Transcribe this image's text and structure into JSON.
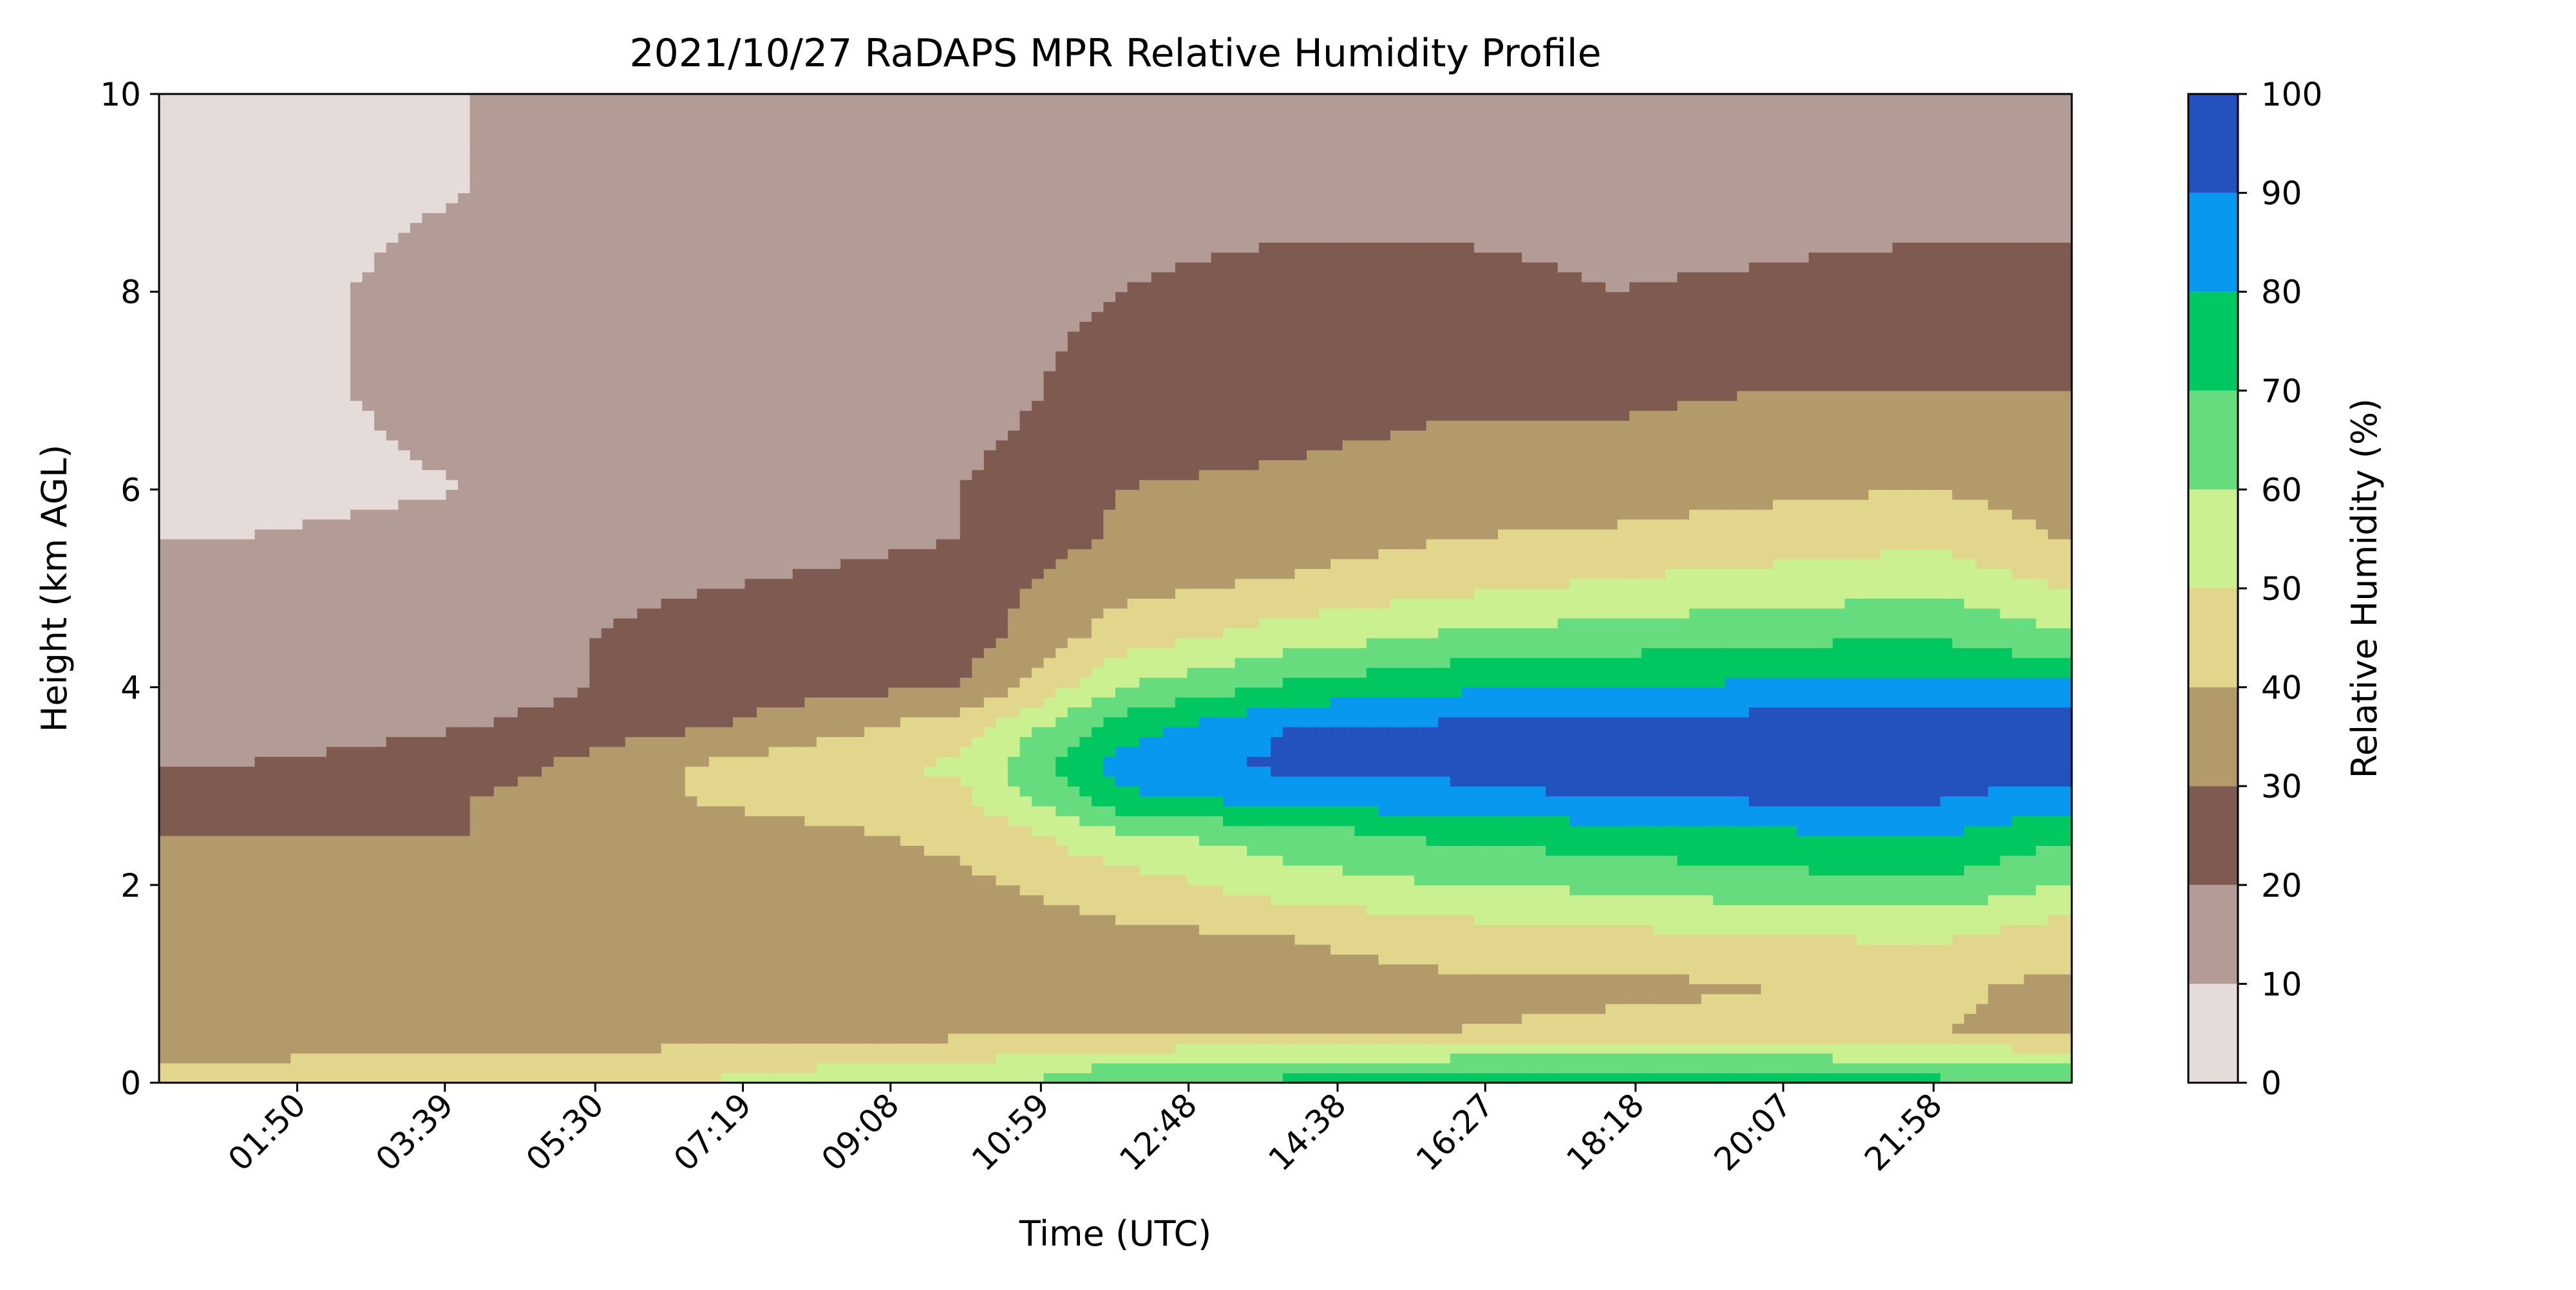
{
  "chart_data": {
    "type": "heatmap",
    "subtype": "filled-contour",
    "title": "2021/10/27 RaDAPS MPR Relative Humidity Profile",
    "xlabel": "Time (UTC)",
    "ylabel": "Height (km AGL)",
    "x_tick_labels": [
      "01:50",
      "03:39",
      "05:30",
      "07:19",
      "09:08",
      "10:59",
      "12:48",
      "14:38",
      "16:27",
      "18:18",
      "20:07",
      "21:58"
    ],
    "x_tick_minutes": [
      110,
      219,
      330,
      439,
      548,
      659,
      768,
      878,
      987,
      1098,
      1207,
      1318
    ],
    "xlim_minutes": [
      8,
      1420
    ],
    "ylim": [
      0,
      10
    ],
    "y_ticks": [
      0,
      2,
      4,
      6,
      8,
      10
    ],
    "colorbar": {
      "label": "Relative Humidity (%)",
      "levels": [
        0,
        10,
        20,
        30,
        40,
        50,
        60,
        70,
        80,
        90,
        100
      ],
      "colors": [
        "#e5dcd9",
        "#b39b96",
        "#7e5a50",
        "#b39a6a",
        "#e2d68c",
        "#cbf08f",
        "#66dc7e",
        "#00c75f",
        "#0998f0",
        "#2351bd"
      ]
    },
    "profile_bands_approx": {
      "height_km": [
        0.1,
        0.5,
        1.0,
        1.5,
        2.0,
        2.5,
        2.9,
        3.2,
        3.6,
        4.0,
        4.5,
        5.0,
        5.5,
        6.0,
        7.0,
        8.0,
        9.0
      ],
      "time_minutes": [
        60,
        240,
        420,
        600,
        720,
        840,
        960,
        1080,
        1200,
        1320,
        1410
      ],
      "rh_percent": [
        [
          45,
          30,
          30,
          30,
          30,
          30,
          25,
          20,
          15,
          15,
          10,
          10,
          10,
          5,
          5,
          5,
          5
        ],
        [
          48,
          32,
          32,
          30,
          32,
          30,
          30,
          25,
          20,
          15,
          15,
          15,
          15,
          10,
          15,
          15,
          10
        ],
        [
          50,
          35,
          32,
          32,
          35,
          35,
          42,
          42,
          30,
          25,
          25,
          20,
          15,
          15,
          15,
          15,
          10
        ],
        [
          55,
          38,
          35,
          35,
          38,
          42,
          48,
          52,
          45,
          30,
          25,
          25,
          20,
          20,
          15,
          15,
          15
        ],
        [
          65,
          40,
          35,
          38,
          45,
          58,
          78,
          85,
          75,
          60,
          45,
          38,
          32,
          30,
          25,
          20,
          15
        ],
        [
          70,
          40,
          36,
          40,
          55,
          65,
          85,
          92,
          90,
          72,
          55,
          42,
          35,
          32,
          25,
          25,
          15
        ],
        [
          72,
          40,
          38,
          45,
          60,
          72,
          88,
          92,
          92,
          78,
          62,
          48,
          40,
          35,
          28,
          25,
          15
        ],
        [
          72,
          42,
          38,
          48,
          62,
          75,
          90,
          95,
          95,
          80,
          65,
          52,
          42,
          35,
          28,
          20,
          15
        ],
        [
          72,
          42,
          40,
          50,
          66,
          78,
          92,
          95,
          95,
          82,
          68,
          55,
          45,
          38,
          30,
          22,
          15
        ],
        [
          70,
          40,
          42,
          52,
          68,
          80,
          92,
          95,
          95,
          82,
          70,
          58,
          48,
          40,
          30,
          25,
          15
        ],
        [
          68,
          38,
          38,
          45,
          60,
          72,
          85,
          95,
          95,
          82,
          62,
          50,
          40,
          35,
          30,
          25,
          15
        ]
      ]
    }
  }
}
